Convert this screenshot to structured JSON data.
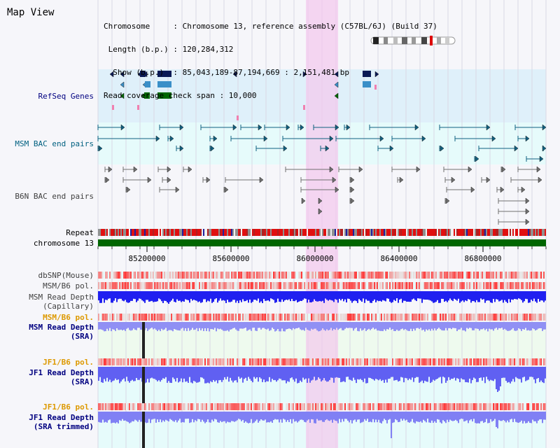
{
  "title": "Map View",
  "info": {
    "lines": [
      "Chromosome     : Chromosome 13, reference assembly (C57BL/6J) (Build 37)",
      " Length (b.p.) : 120,284,312",
      "  Show (b.p.)  : 85,043,189-87,194,669 : 2,151,481 bp",
      "Read coverage check span : 10,000"
    ]
  },
  "tracks": {
    "refseq": "RefSeq Genes",
    "msm_bac": "MSM BAC end pairs",
    "b6n_bac": "B6N BAC end pairs",
    "repeat": "Repeat",
    "chromosome": "chromosome 13",
    "dbsnp": "dbSNP(Mouse)",
    "msm_pol": "MSM/B6 pol.",
    "msm_depth_cap_1": "MSM Read Depth",
    "msm_depth_cap_2": "(Capillary)",
    "msm_pol2": "MSM/B6 pol.",
    "msm_depth_sra_1": "MSM Read Depth",
    "msm_depth_sra_2": "(SRA)",
    "jf1_pol": "JF1/B6 pol.",
    "jf1_depth_1": "JF1 Read Depth",
    "jf1_depth_2": "(SRA)",
    "jf1_pol2": "JF1/B6 pol.",
    "jf1_trim_1": "JF1 Read Depth",
    "jf1_trim_2": "(SRA trimmed)"
  },
  "axis": {
    "ticks": [
      "85200000",
      "85600000",
      "86000000",
      "86400000",
      "86800000"
    ]
  },
  "colors": {
    "refseq_bg": "#dff0fa",
    "msm_bg": "#e6fbfb",
    "highlight": "#f8d8f2",
    "chrom_green": "#006600",
    "sra_bg": "#eefaee",
    "depth_blue": "#5050f0",
    "label_navy": "#000080",
    "label_orange": "#dd9900"
  }
}
